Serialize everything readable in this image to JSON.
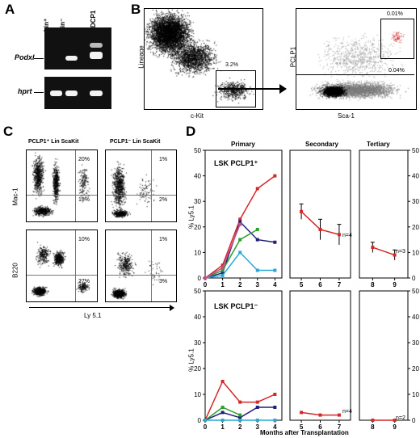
{
  "panels": {
    "A": {
      "letter": "A",
      "lanes": [
        "Lin⁺",
        "Lin⁻",
        "FDCP1"
      ],
      "gene_top": "Podxl",
      "gene_bottom": "hprt"
    },
    "B": {
      "letter": "B",
      "left_ylabel": "Lineage",
      "left_xlabel": "c-Kit",
      "left_gate_pct": "3.2%",
      "right_ylabel": "PCLP1",
      "right_xlabel": "Sca-1",
      "right_gate_top_pct": "0.01%",
      "right_gate_bottom_pct": "0.04%"
    },
    "C": {
      "letter": "C",
      "col_left": "PCLP1⁺ Lin ScaKit",
      "col_right": "PCLP1⁻ Lin ScaKit",
      "row_top": "Mac-1",
      "row_bottom": "B220",
      "xlabel": "Ly 5.1",
      "quads": {
        "left_top_upper": "20%",
        "left_top_lower": "15%",
        "right_top_upper": "1%",
        "right_top_lower": "2%",
        "left_bot_upper": "10%",
        "left_bot_lower": "27%",
        "right_bot_upper": "1%",
        "right_bot_lower": "3%"
      }
    },
    "D": {
      "letter": "D",
      "col_primary": "Primary",
      "col_secondary": "Secondary",
      "col_tertiary": "Tertiary",
      "row_top_label": "LSK PCLP1⁺",
      "row_bottom_label": "LSK PCLP1⁻",
      "ylabel": "% Ly5.1",
      "xlabel": "Months after Transplantation",
      "n_top_secondary": "n=4",
      "n_top_tertiary": "n=3",
      "n_bottom_secondary": "n=4",
      "n_bottom_tertiary": "n=2"
    }
  },
  "chart_data": [
    {
      "type": "line",
      "title": "LSK PCLP1⁺ Primary",
      "ylabel": "% Ly5.1",
      "ylim": [
        0,
        50
      ],
      "x": [
        0,
        1,
        2,
        3,
        4
      ],
      "series": [
        {
          "color": "#d62728",
          "values": [
            0,
            5,
            23,
            35,
            40
          ]
        },
        {
          "color": "#1f1f7a",
          "values": [
            0,
            2,
            22,
            15,
            14
          ]
        },
        {
          "color": "#2ca02c",
          "values": [
            0,
            3,
            15,
            19,
            null
          ]
        },
        {
          "color": "#29a8d6",
          "values": [
            0,
            1,
            10,
            3,
            3
          ]
        },
        {
          "color": "#c44e8a",
          "values": [
            0,
            4,
            21,
            null,
            null
          ]
        }
      ]
    },
    {
      "type": "line",
      "title": "LSK PCLP1⁺ Secondary",
      "ylim": [
        0,
        50
      ],
      "x": [
        5,
        6,
        7
      ],
      "series": [
        {
          "color": "#d62728",
          "values": [
            26,
            19,
            17
          ],
          "errors": [
            3,
            4,
            4
          ]
        }
      ]
    },
    {
      "type": "line",
      "title": "LSK PCLP1⁺ Tertiary",
      "ylim": [
        0,
        50
      ],
      "x": [
        8,
        9
      ],
      "series": [
        {
          "color": "#d62728",
          "values": [
            12,
            9
          ],
          "errors": [
            2,
            2
          ]
        }
      ]
    },
    {
      "type": "line",
      "title": "LSK PCLP1⁻ Primary",
      "ylim": [
        0,
        50
      ],
      "x": [
        0,
        1,
        2,
        3,
        4
      ],
      "series": [
        {
          "color": "#d62728",
          "values": [
            0,
            15,
            7,
            7,
            10
          ]
        },
        {
          "color": "#1f1f7a",
          "values": [
            0,
            3,
            1,
            5,
            5
          ]
        },
        {
          "color": "#2ca02c",
          "values": [
            0,
            5,
            2,
            null,
            null
          ]
        },
        {
          "color": "#29a8d6",
          "values": [
            0,
            0,
            0,
            0,
            0
          ]
        }
      ]
    },
    {
      "type": "line",
      "title": "LSK PCLP1⁻ Secondary",
      "ylim": [
        0,
        50
      ],
      "x": [
        5,
        6,
        7
      ],
      "series": [
        {
          "color": "#d62728",
          "values": [
            3,
            2,
            2
          ]
        }
      ]
    },
    {
      "type": "line",
      "title": "LSK PCLP1⁻ Tertiary",
      "ylim": [
        0,
        50
      ],
      "x": [
        8,
        9
      ],
      "series": [
        {
          "color": "#d62728",
          "values": [
            0,
            0
          ]
        }
      ]
    }
  ]
}
